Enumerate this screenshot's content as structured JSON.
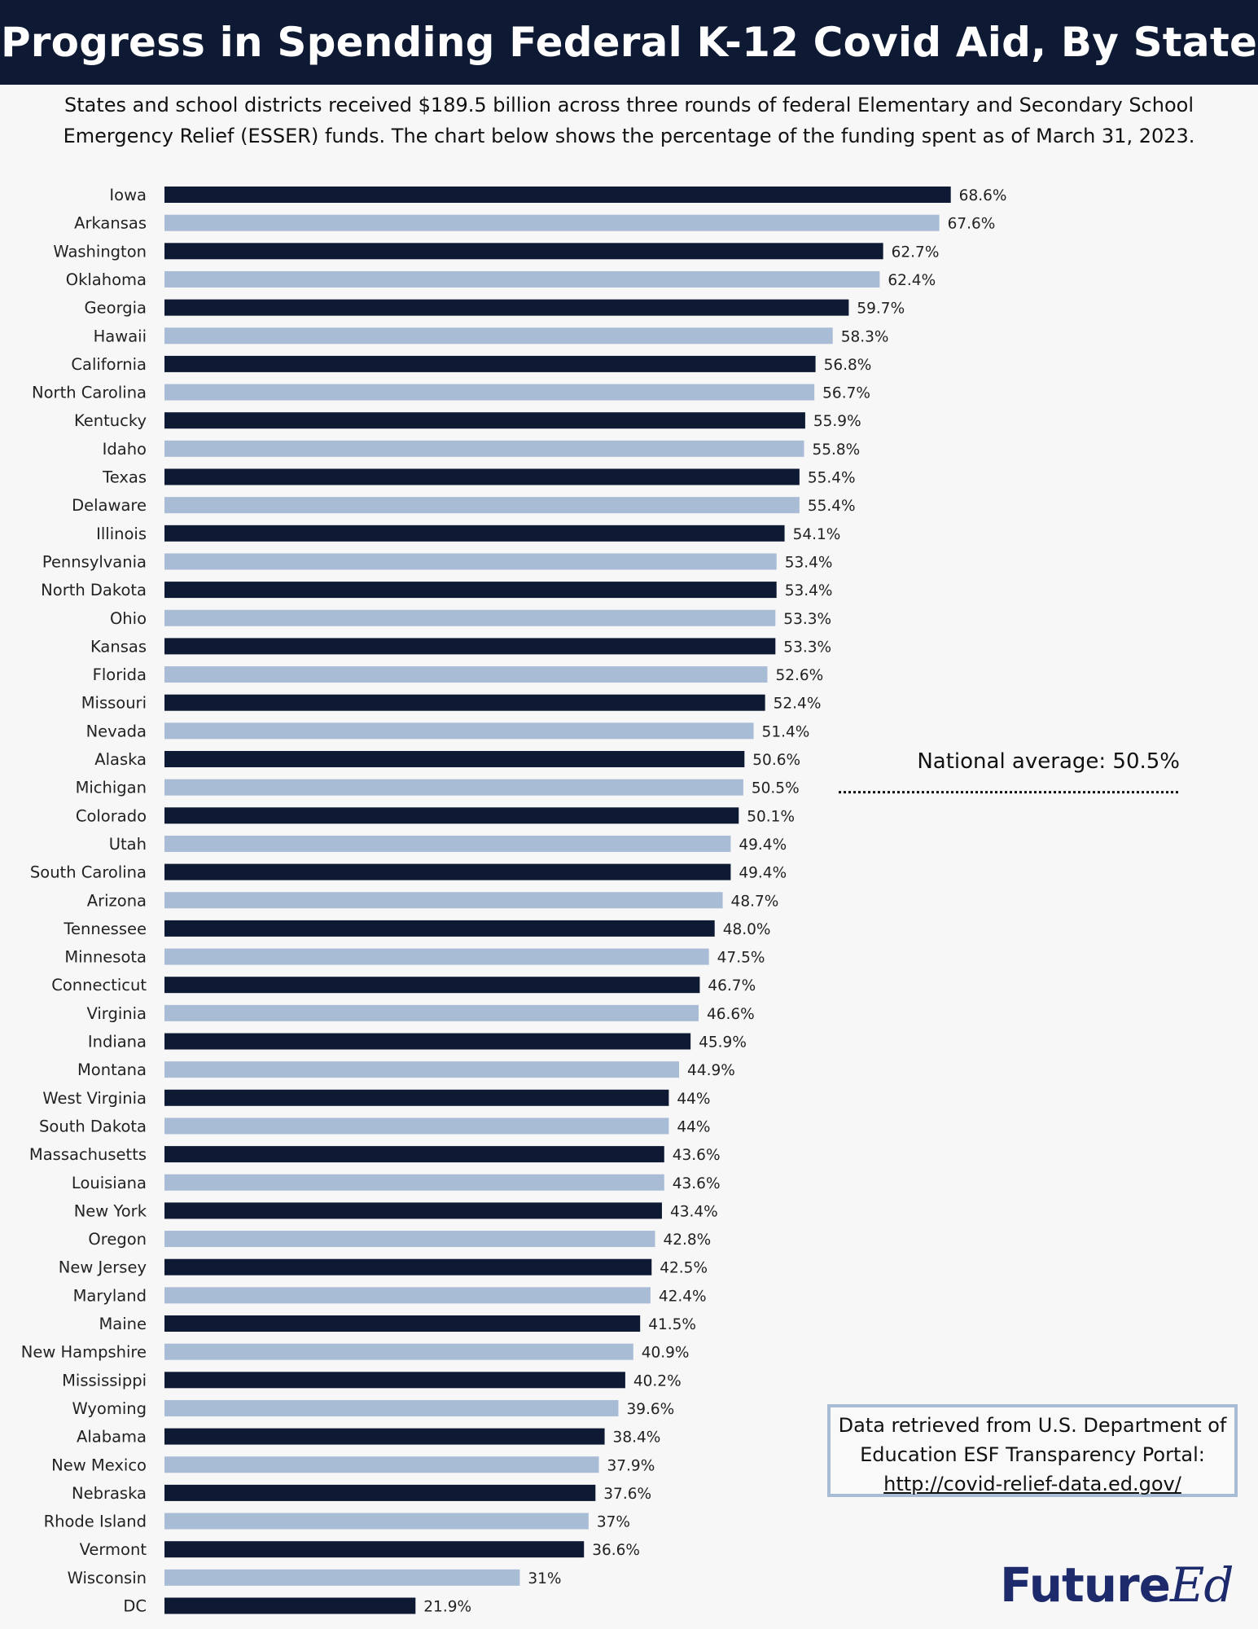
{
  "header": {
    "title": "Progress in Spending Federal K-12 Covid Aid, By State",
    "subtitle": "States and school districts received $189.5 billion across three rounds of federal Elementary and Secondary School Emergency Relief (ESSER) funds. The chart below shows the percentage of the funding spent as of March 31, 2023."
  },
  "annotation": {
    "national_average": "National average: 50.5%"
  },
  "source": {
    "text": "Data retrieved from U.S. Department of Education ESF Transparency Portal:",
    "url": "http://covid-relief-data.ed.gov/"
  },
  "logo": {
    "part1": "Future",
    "part2": "Ed"
  },
  "colors": {
    "dark": "#0e1a33",
    "light": "#a9bcd6"
  },
  "chart_data": {
    "type": "bar",
    "orientation": "horizontal",
    "title": "Progress in Spending Federal K-12 Covid Aid, By State",
    "xlim": [
      0,
      100
    ],
    "reference_line": {
      "value": 50.5,
      "label": "National average: 50.5%"
    },
    "categories": [
      "Iowa",
      "Arkansas",
      "Washington",
      "Oklahoma",
      "Georgia",
      "Hawaii",
      "California",
      "North Carolina",
      "Kentucky",
      "Idaho",
      "Texas",
      "Delaware",
      "Illinois",
      "Pennsylvania",
      "North Dakota",
      "Ohio",
      "Kansas",
      "Florida",
      "Missouri",
      "Nevada",
      "Alaska",
      "Michigan",
      "Colorado",
      "Utah",
      "South Carolina",
      "Arizona",
      "Tennessee",
      "Minnesota",
      "Connecticut",
      "Virginia",
      "Indiana",
      "Montana",
      "West Virginia",
      "South Dakota",
      "Massachusetts",
      "Louisiana",
      "New York",
      "Oregon",
      "New Jersey",
      "Maryland",
      "Maine",
      "New Hampshire",
      "Mississippi",
      "Wyoming",
      "Alabama",
      "New Mexico",
      "Nebraska",
      "Rhode Island",
      "Vermont",
      "Wisconsin",
      "DC"
    ],
    "values": [
      68.6,
      67.6,
      62.7,
      62.4,
      59.7,
      58.3,
      56.8,
      56.7,
      55.9,
      55.8,
      55.4,
      55.4,
      54.1,
      53.4,
      53.4,
      53.3,
      53.3,
      52.6,
      52.4,
      51.4,
      50.6,
      50.5,
      50.1,
      49.4,
      49.4,
      48.7,
      48.0,
      47.5,
      46.7,
      46.6,
      45.9,
      44.9,
      44,
      44,
      43.6,
      43.6,
      43.4,
      42.8,
      42.5,
      42.4,
      41.5,
      40.9,
      40.2,
      39.6,
      38.4,
      37.9,
      37.6,
      37,
      36.6,
      31,
      21.9
    ],
    "labels": [
      "68.6%",
      "67.6%",
      "62.7%",
      "62.4%",
      "59.7%",
      "58.3%",
      "56.8%",
      "56.7%",
      "55.9%",
      "55.8%",
      "55.4%",
      "55.4%",
      "54.1%",
      "53.4%",
      "53.4%",
      "53.3%",
      "53.3%",
      "52.6%",
      "52.4%",
      "51.4%",
      "50.6%",
      "50.5%",
      "50.1%",
      "49.4%",
      "49.4%",
      "48.7%",
      "48.0%",
      "47.5%",
      "46.7%",
      "46.6%",
      "45.9%",
      "44.9%",
      "44%",
      "44%",
      "43.6%",
      "43.6%",
      "43.4%",
      "42.8%",
      "42.5%",
      "42.4%",
      "41.5%",
      "40.9%",
      "40.2%",
      "39.6%",
      "38.4%",
      "37.9%",
      "37.6%",
      "37%",
      "36.6%",
      "31%",
      "21.9%"
    ]
  }
}
